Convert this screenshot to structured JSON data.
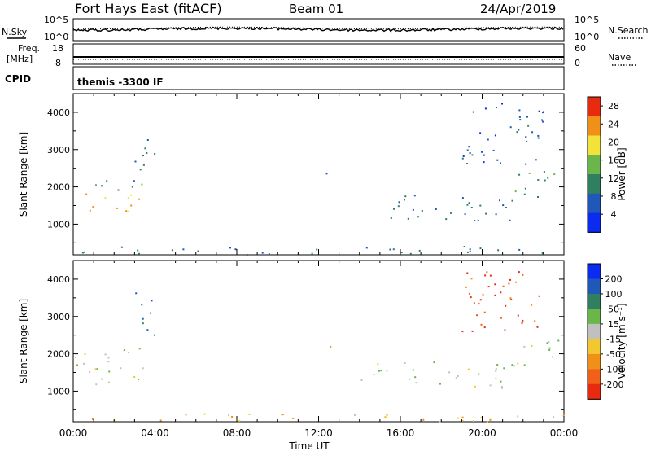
{
  "header": {
    "radar_title": "Fort Hays East (fitACF)",
    "beam": "Beam 01",
    "date": "24/Apr/2019"
  },
  "noise_panel": {
    "left_label": "N.Sky",
    "right_label": "N.Search",
    "left_ticks": [
      "10^5",
      "10^0"
    ],
    "right_ticks": [
      "10^5",
      "10^0"
    ]
  },
  "freq_panel": {
    "left_label_1": "Freq.",
    "left_label_2": "[MHz]",
    "right_label": "Nave",
    "left_ticks": [
      "18",
      "8"
    ],
    "right_ticks": [
      "60",
      "0"
    ]
  },
  "cpid_panel": {
    "left_label": "CPID",
    "value": "themis -3300 IF"
  },
  "chart_data": [
    {
      "type": "heatmap",
      "title": "",
      "xlabel": "Time UT",
      "ylabel": "Slant Range [km]",
      "xlim": [
        0,
        24
      ],
      "ylim": [
        180,
        4500
      ],
      "x_ticks": [
        "00:00",
        "04:00",
        "08:00",
        "12:00",
        "16:00",
        "20:00",
        "00:00"
      ],
      "y_ticks": [
        "1000",
        "2000",
        "3000",
        "4000"
      ],
      "colorbar": {
        "label": "Power [dB]",
        "ticks": [
          "4",
          "8",
          "12",
          "16",
          "20",
          "24",
          "28"
        ],
        "range": [
          0,
          30
        ],
        "colors": [
          "#0b2cf0",
          "#1f58b8",
          "#2f7f60",
          "#6bb64a",
          "#f2e23a",
          "#f09018",
          "#e82a10"
        ]
      },
      "regions": [
        {
          "t0": 0.05,
          "t1": 3.2,
          "r0": 1250,
          "r1": 1900,
          "value": 22
        },
        {
          "t0": 0.4,
          "t1": 3.4,
          "r0": 1900,
          "r1": 2300,
          "value": 11
        },
        {
          "t0": 3.0,
          "t1": 4.0,
          "r0": 2300,
          "r1": 3700,
          "value": 10
        },
        {
          "t0": 0.3,
          "t1": 24.0,
          "r0": 200,
          "r1": 420,
          "value": 9
        },
        {
          "t0": 14.0,
          "t1": 21.5,
          "r0": 1100,
          "r1": 1800,
          "value": 9
        },
        {
          "t0": 21.5,
          "t1": 23.9,
          "r0": 1700,
          "r1": 2500,
          "value": 12
        },
        {
          "t0": 12.3,
          "t1": 12.8,
          "r0": 2200,
          "r1": 2500,
          "value": 6
        },
        {
          "t0": 19.0,
          "t1": 23.0,
          "r0": 2600,
          "r1": 4400,
          "value": 6
        }
      ]
    },
    {
      "type": "heatmap",
      "title": "",
      "xlabel": "Time UT",
      "ylabel": "Slant Range [km]",
      "xlim": [
        0,
        24
      ],
      "ylim": [
        180,
        4500
      ],
      "x_ticks": [
        "00:00",
        "04:00",
        "08:00",
        "12:00",
        "16:00",
        "20:00",
        "00:00"
      ],
      "y_ticks": [
        "1000",
        "2000",
        "3000",
        "4000"
      ],
      "colorbar": {
        "label": "Velocity [m s⁻¹]",
        "ticks": [
          "200",
          "100",
          "50",
          "15",
          "-15",
          "-50",
          "-100",
          "-200"
        ],
        "range": [
          -250,
          250
        ],
        "colors": [
          "#e82a10",
          "#f06018",
          "#f09018",
          "#f2c830",
          "#c0c0c0",
          "#6bb64a",
          "#2f7f60",
          "#1f58b8",
          "#0b2cf0"
        ]
      },
      "regions": [
        {
          "t0": 0.05,
          "t1": 3.5,
          "r0": 1100,
          "r1": 2200,
          "value": 0
        },
        {
          "t0": 3.0,
          "t1": 4.0,
          "r0": 2300,
          "r1": 3700,
          "value": 150
        },
        {
          "t0": 0.3,
          "t1": 24.0,
          "r0": 200,
          "r1": 420,
          "value": -60
        },
        {
          "t0": 14.0,
          "t1": 21.5,
          "r0": 1100,
          "r1": 1800,
          "value": 0
        },
        {
          "t0": 21.5,
          "t1": 23.9,
          "r0": 1700,
          "r1": 2500,
          "value": -5
        },
        {
          "t0": 12.3,
          "t1": 12.8,
          "r0": 2200,
          "r1": 2500,
          "value": -120
        },
        {
          "t0": 19.0,
          "t1": 23.0,
          "r0": 2600,
          "r1": 4400,
          "value": -180
        }
      ]
    }
  ]
}
